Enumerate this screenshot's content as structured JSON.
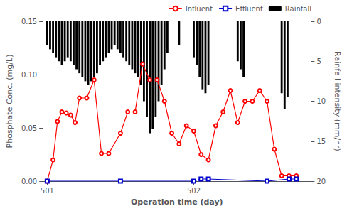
{
  "chart_data": {
    "type": "line",
    "xlabel": "Operation time (day)",
    "ylabel": "Phosphate Conc. (mg/L)",
    "y2label": "Rainfall intensity (mm/hr)",
    "xlim": [
      500.97,
      502.8
    ],
    "xticks": [
      501,
      502
    ],
    "ylim": [
      0.0,
      0.15
    ],
    "yticks": [
      {
        "value": 0.0,
        "label": "0.00"
      },
      0.05,
      {
        "value": 0.1,
        "label": "0.10"
      },
      0.15
    ],
    "y2lim": [
      20,
      0
    ],
    "y2ticks": [
      0,
      5,
      10,
      15,
      20
    ],
    "grid": false,
    "legend": "upper right",
    "series": [
      {
        "name": "Influent",
        "type": "line",
        "color": "#FF0000",
        "marker": "circle",
        "x": [
          501.0,
          501.04,
          501.07,
          501.1,
          501.13,
          501.16,
          501.19,
          501.22,
          501.27,
          501.32,
          501.37,
          501.42,
          501.5,
          501.55,
          501.6,
          501.65,
          501.7,
          501.75,
          501.8,
          501.85,
          501.9,
          501.95,
          502.0,
          502.05,
          502.1,
          502.15,
          502.2,
          502.25,
          502.3,
          502.35,
          502.4,
          502.45,
          502.5,
          502.55,
          502.6,
          502.65,
          502.7
        ],
        "values": [
          0.0,
          0.02,
          0.056,
          0.065,
          0.064,
          0.062,
          0.055,
          0.078,
          0.078,
          0.095,
          0.026,
          0.026,
          0.045,
          0.065,
          0.065,
          0.11,
          0.095,
          0.095,
          0.075,
          0.045,
          0.035,
          0.052,
          0.047,
          0.025,
          0.02,
          0.052,
          0.065,
          0.085,
          0.055,
          0.075,
          0.075,
          0.085,
          0.075,
          0.03,
          0.005,
          0.005,
          0.005
        ]
      },
      {
        "name": "Effluent",
        "type": "line",
        "color": "#0000CC",
        "marker": "square",
        "x": [
          501.0,
          501.5,
          502.0,
          502.05,
          502.1,
          502.5,
          502.65,
          502.7
        ],
        "values": [
          0.0,
          0.0,
          0.0,
          0.002,
          0.002,
          0.0,
          0.002,
          0.002
        ]
      },
      {
        "name": "Rainfall",
        "type": "bar",
        "color": "#000000",
        "axis": "y2",
        "x": [
          501.0,
          501.02,
          501.04,
          501.06,
          501.08,
          501.1,
          501.12,
          501.14,
          501.16,
          501.18,
          501.2,
          501.22,
          501.24,
          501.26,
          501.28,
          501.3,
          501.32,
          501.34,
          501.36,
          501.38,
          501.4,
          501.42,
          501.44,
          501.46,
          501.48,
          501.5,
          501.52,
          501.54,
          501.56,
          501.58,
          501.6,
          501.62,
          501.64,
          501.66,
          501.68,
          501.7,
          501.72,
          501.74,
          501.76,
          501.78,
          501.8,
          501.82,
          501.9,
          502.0,
          502.02,
          502.04,
          502.06,
          502.08,
          502.1,
          502.3,
          502.32,
          502.34,
          502.6,
          502.62,
          502.64
        ],
        "values": [
          3.0,
          3.5,
          4.0,
          4.5,
          5.0,
          5.5,
          5.0,
          4.5,
          5.0,
          5.5,
          6.0,
          6.5,
          7.0,
          7.5,
          8.0,
          7.5,
          7.0,
          6.5,
          5.5,
          5.0,
          4.5,
          4.0,
          3.5,
          3.0,
          3.5,
          4.0,
          4.5,
          5.0,
          5.5,
          6.0,
          6.5,
          7.0,
          8.0,
          10.0,
          12.0,
          14.0,
          13.5,
          12.0,
          10.0,
          8.0,
          6.0,
          4.0,
          3.0,
          4.5,
          5.5,
          7.0,
          8.5,
          9.0,
          8.0,
          5.0,
          6.0,
          7.0,
          9.0,
          11.0,
          9.5
        ]
      }
    ]
  }
}
